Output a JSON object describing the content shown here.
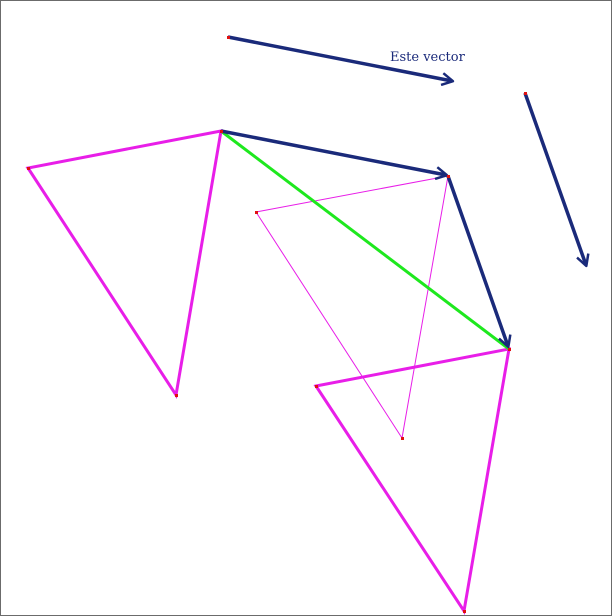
{
  "diagram": {
    "vector_label": "Este vector",
    "colors": {
      "vector": "#1a2a7a",
      "triangle": "#e81ee8",
      "resultant": "#1ee81e",
      "point": "#e01010",
      "border": "#6b6b6b"
    }
  }
}
